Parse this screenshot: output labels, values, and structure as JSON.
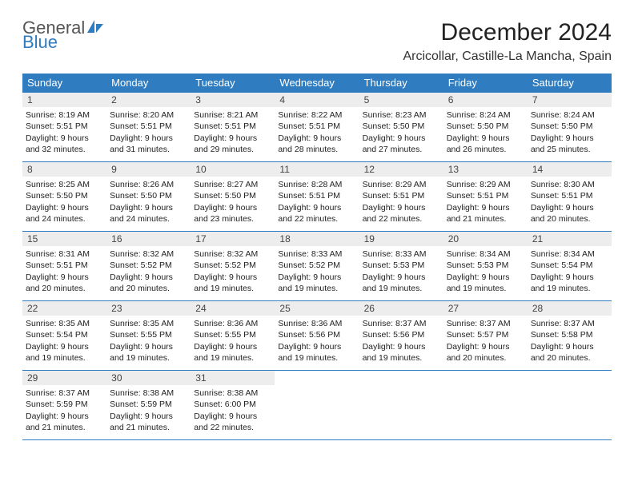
{
  "logo": {
    "text1": "General",
    "text2": "Blue",
    "color_primary": "#2f7dc0",
    "color_secondary": "#555555"
  },
  "title": "December 2024",
  "location": "Arcicollar, Castille-La Mancha, Spain",
  "calendar": {
    "type": "table",
    "header_bg": "#2f7dc0",
    "header_fg": "#ffffff",
    "daynum_bg": "#ededed",
    "rule_color": "#2f7dc0",
    "text_color": "#222222",
    "cell_fontsize": 10.5,
    "header_fontsize": 13,
    "weekdays": [
      "Sunday",
      "Monday",
      "Tuesday",
      "Wednesday",
      "Thursday",
      "Friday",
      "Saturday"
    ],
    "weeks": [
      [
        {
          "n": "1",
          "sunrise": "Sunrise: 8:19 AM",
          "sunset": "Sunset: 5:51 PM",
          "day1": "Daylight: 9 hours",
          "day2": "and 32 minutes."
        },
        {
          "n": "2",
          "sunrise": "Sunrise: 8:20 AM",
          "sunset": "Sunset: 5:51 PM",
          "day1": "Daylight: 9 hours",
          "day2": "and 31 minutes."
        },
        {
          "n": "3",
          "sunrise": "Sunrise: 8:21 AM",
          "sunset": "Sunset: 5:51 PM",
          "day1": "Daylight: 9 hours",
          "day2": "and 29 minutes."
        },
        {
          "n": "4",
          "sunrise": "Sunrise: 8:22 AM",
          "sunset": "Sunset: 5:51 PM",
          "day1": "Daylight: 9 hours",
          "day2": "and 28 minutes."
        },
        {
          "n": "5",
          "sunrise": "Sunrise: 8:23 AM",
          "sunset": "Sunset: 5:50 PM",
          "day1": "Daylight: 9 hours",
          "day2": "and 27 minutes."
        },
        {
          "n": "6",
          "sunrise": "Sunrise: 8:24 AM",
          "sunset": "Sunset: 5:50 PM",
          "day1": "Daylight: 9 hours",
          "day2": "and 26 minutes."
        },
        {
          "n": "7",
          "sunrise": "Sunrise: 8:24 AM",
          "sunset": "Sunset: 5:50 PM",
          "day1": "Daylight: 9 hours",
          "day2": "and 25 minutes."
        }
      ],
      [
        {
          "n": "8",
          "sunrise": "Sunrise: 8:25 AM",
          "sunset": "Sunset: 5:50 PM",
          "day1": "Daylight: 9 hours",
          "day2": "and 24 minutes."
        },
        {
          "n": "9",
          "sunrise": "Sunrise: 8:26 AM",
          "sunset": "Sunset: 5:50 PM",
          "day1": "Daylight: 9 hours",
          "day2": "and 24 minutes."
        },
        {
          "n": "10",
          "sunrise": "Sunrise: 8:27 AM",
          "sunset": "Sunset: 5:50 PM",
          "day1": "Daylight: 9 hours",
          "day2": "and 23 minutes."
        },
        {
          "n": "11",
          "sunrise": "Sunrise: 8:28 AM",
          "sunset": "Sunset: 5:51 PM",
          "day1": "Daylight: 9 hours",
          "day2": "and 22 minutes."
        },
        {
          "n": "12",
          "sunrise": "Sunrise: 8:29 AM",
          "sunset": "Sunset: 5:51 PM",
          "day1": "Daylight: 9 hours",
          "day2": "and 22 minutes."
        },
        {
          "n": "13",
          "sunrise": "Sunrise: 8:29 AM",
          "sunset": "Sunset: 5:51 PM",
          "day1": "Daylight: 9 hours",
          "day2": "and 21 minutes."
        },
        {
          "n": "14",
          "sunrise": "Sunrise: 8:30 AM",
          "sunset": "Sunset: 5:51 PM",
          "day1": "Daylight: 9 hours",
          "day2": "and 20 minutes."
        }
      ],
      [
        {
          "n": "15",
          "sunrise": "Sunrise: 8:31 AM",
          "sunset": "Sunset: 5:51 PM",
          "day1": "Daylight: 9 hours",
          "day2": "and 20 minutes."
        },
        {
          "n": "16",
          "sunrise": "Sunrise: 8:32 AM",
          "sunset": "Sunset: 5:52 PM",
          "day1": "Daylight: 9 hours",
          "day2": "and 20 minutes."
        },
        {
          "n": "17",
          "sunrise": "Sunrise: 8:32 AM",
          "sunset": "Sunset: 5:52 PM",
          "day1": "Daylight: 9 hours",
          "day2": "and 19 minutes."
        },
        {
          "n": "18",
          "sunrise": "Sunrise: 8:33 AM",
          "sunset": "Sunset: 5:52 PM",
          "day1": "Daylight: 9 hours",
          "day2": "and 19 minutes."
        },
        {
          "n": "19",
          "sunrise": "Sunrise: 8:33 AM",
          "sunset": "Sunset: 5:53 PM",
          "day1": "Daylight: 9 hours",
          "day2": "and 19 minutes."
        },
        {
          "n": "20",
          "sunrise": "Sunrise: 8:34 AM",
          "sunset": "Sunset: 5:53 PM",
          "day1": "Daylight: 9 hours",
          "day2": "and 19 minutes."
        },
        {
          "n": "21",
          "sunrise": "Sunrise: 8:34 AM",
          "sunset": "Sunset: 5:54 PM",
          "day1": "Daylight: 9 hours",
          "day2": "and 19 minutes."
        }
      ],
      [
        {
          "n": "22",
          "sunrise": "Sunrise: 8:35 AM",
          "sunset": "Sunset: 5:54 PM",
          "day1": "Daylight: 9 hours",
          "day2": "and 19 minutes."
        },
        {
          "n": "23",
          "sunrise": "Sunrise: 8:35 AM",
          "sunset": "Sunset: 5:55 PM",
          "day1": "Daylight: 9 hours",
          "day2": "and 19 minutes."
        },
        {
          "n": "24",
          "sunrise": "Sunrise: 8:36 AM",
          "sunset": "Sunset: 5:55 PM",
          "day1": "Daylight: 9 hours",
          "day2": "and 19 minutes."
        },
        {
          "n": "25",
          "sunrise": "Sunrise: 8:36 AM",
          "sunset": "Sunset: 5:56 PM",
          "day1": "Daylight: 9 hours",
          "day2": "and 19 minutes."
        },
        {
          "n": "26",
          "sunrise": "Sunrise: 8:37 AM",
          "sunset": "Sunset: 5:56 PM",
          "day1": "Daylight: 9 hours",
          "day2": "and 19 minutes."
        },
        {
          "n": "27",
          "sunrise": "Sunrise: 8:37 AM",
          "sunset": "Sunset: 5:57 PM",
          "day1": "Daylight: 9 hours",
          "day2": "and 20 minutes."
        },
        {
          "n": "28",
          "sunrise": "Sunrise: 8:37 AM",
          "sunset": "Sunset: 5:58 PM",
          "day1": "Daylight: 9 hours",
          "day2": "and 20 minutes."
        }
      ],
      [
        {
          "n": "29",
          "sunrise": "Sunrise: 8:37 AM",
          "sunset": "Sunset: 5:59 PM",
          "day1": "Daylight: 9 hours",
          "day2": "and 21 minutes."
        },
        {
          "n": "30",
          "sunrise": "Sunrise: 8:38 AM",
          "sunset": "Sunset: 5:59 PM",
          "day1": "Daylight: 9 hours",
          "day2": "and 21 minutes."
        },
        {
          "n": "31",
          "sunrise": "Sunrise: 8:38 AM",
          "sunset": "Sunset: 6:00 PM",
          "day1": "Daylight: 9 hours",
          "day2": "and 22 minutes."
        },
        {
          "empty": true
        },
        {
          "empty": true
        },
        {
          "empty": true
        },
        {
          "empty": true
        }
      ]
    ]
  }
}
